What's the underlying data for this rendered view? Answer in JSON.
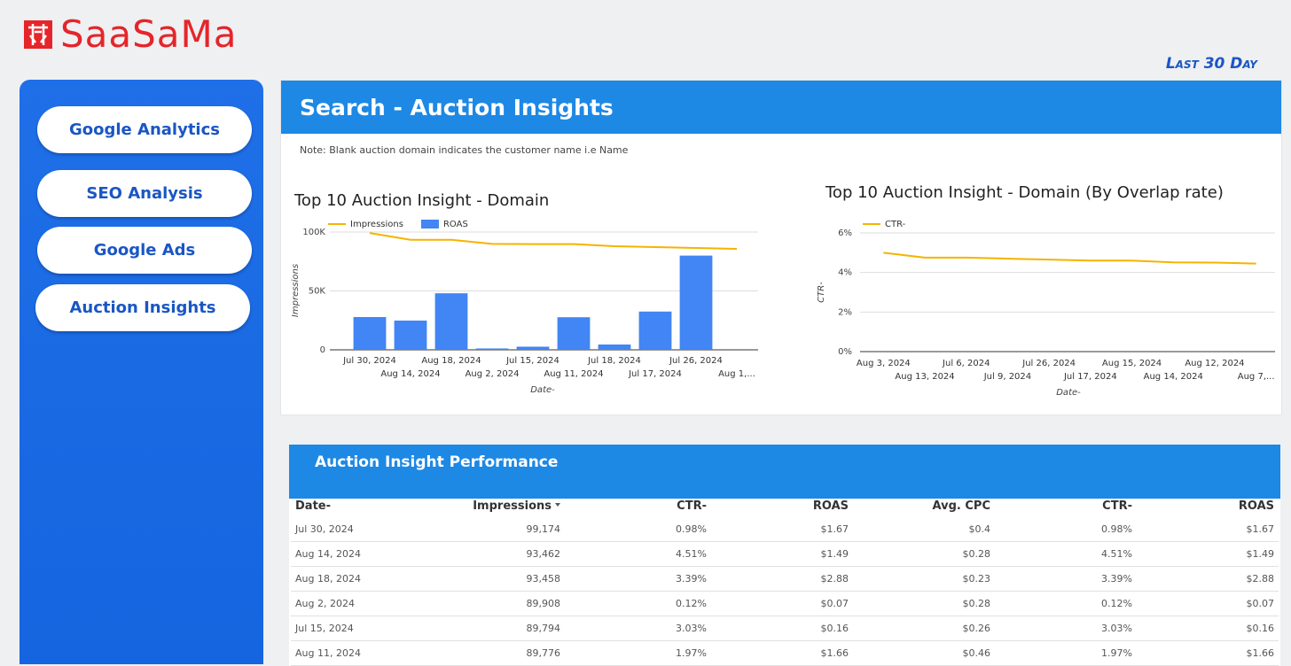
{
  "header": {
    "logo": "SaaSaMa",
    "period": "Last 30 Day"
  },
  "nav": [
    "Google Analytics",
    "SEO Analysis",
    "Google Ads",
    "Auction Insights"
  ],
  "panel": {
    "title": "Search - Auction Insights",
    "note": "Note: Blank auction domain indicates the customer name i.e Name"
  },
  "chart_data": [
    {
      "type": "combo",
      "title": "Top 10 Auction Insight - Domain",
      "categories": [
        "Jul 30, 2024",
        "Aug 14, 2024",
        "Aug 18, 2024",
        "Aug 2, 2024",
        "Jul 15, 2024",
        "Aug 11, 2024",
        "Jul 18, 2024",
        "Jul 17, 2024",
        "Jul 26, 2024",
        "Aug 1,..."
      ],
      "series": [
        {
          "name": "Impressions",
          "type": "line",
          "color": "#f4b400",
          "values": [
            99174,
            93462,
            93458,
            89908,
            89794,
            89776,
            88000,
            87200,
            86500,
            85700
          ]
        },
        {
          "name": "ROAS",
          "type": "bar",
          "color": "#4285f4",
          "axis": "y2",
          "values": [
            1.67,
            1.49,
            2.88,
            0.07,
            0.16,
            1.66,
            0.27,
            1.95,
            4.8,
            null
          ]
        }
      ],
      "ylim": [
        0,
        100000
      ],
      "yticks": [
        0,
        {
          "value": 50000,
          "label": "50K"
        },
        {
          "value": 100000,
          "label": "100K"
        }
      ],
      "y2lim": [
        0,
        6
      ],
      "ylabel": "Impressions",
      "xlabel": "Date-",
      "grid": true
    },
    {
      "type": "line",
      "title": "Top 10 Auction Insight - Domain (By Overlap rate)",
      "categories": [
        "Aug 3, 2024",
        "Aug 13, 2024",
        "Jul 6, 2024",
        "Jul 9, 2024",
        "Jul 26, 2024",
        "Jul 17, 2024",
        "Aug 15, 2024",
        "Aug 14, 2024",
        "Aug 12, 2024",
        "Aug 7,..."
      ],
      "series": [
        {
          "name": "CTR-",
          "type": "line",
          "color": "#f4b400",
          "values": [
            5.0,
            4.75,
            4.75,
            4.7,
            4.65,
            4.6,
            4.6,
            4.51,
            4.5,
            4.45
          ]
        }
      ],
      "ylim": [
        0,
        6
      ],
      "yticks": [
        {
          "value": 0,
          "label": "0%"
        },
        {
          "value": 2,
          "label": "2%"
        },
        {
          "value": 4,
          "label": "4%"
        },
        {
          "value": 6,
          "label": "6%"
        }
      ],
      "ylabel": "CTR-",
      "xlabel": "Date-",
      "grid": true
    }
  ],
  "table": {
    "title": "Auction Insight Performance",
    "columns": [
      "Date-",
      "Impressions",
      "CTR-",
      "ROAS",
      "Avg. CPC",
      "CTR-",
      "ROAS"
    ],
    "rows": [
      [
        "Jul 30, 2024",
        "99,174",
        "0.98%",
        "$1.67",
        "$0.4",
        "0.98%",
        "$1.67"
      ],
      [
        "Aug 14, 2024",
        "93,462",
        "4.51%",
        "$1.49",
        "$0.28",
        "4.51%",
        "$1.49"
      ],
      [
        "Aug 18, 2024",
        "93,458",
        "3.39%",
        "$2.88",
        "$0.23",
        "3.39%",
        "$2.88"
      ],
      [
        "Aug 2, 2024",
        "89,908",
        "0.12%",
        "$0.07",
        "$0.28",
        "0.12%",
        "$0.07"
      ],
      [
        "Jul 15, 2024",
        "89,794",
        "3.03%",
        "$0.16",
        "$0.26",
        "3.03%",
        "$0.16"
      ],
      [
        "Aug 11, 2024",
        "89,776",
        "1.97%",
        "$1.66",
        "$0.46",
        "1.97%",
        "$1.66"
      ]
    ]
  }
}
